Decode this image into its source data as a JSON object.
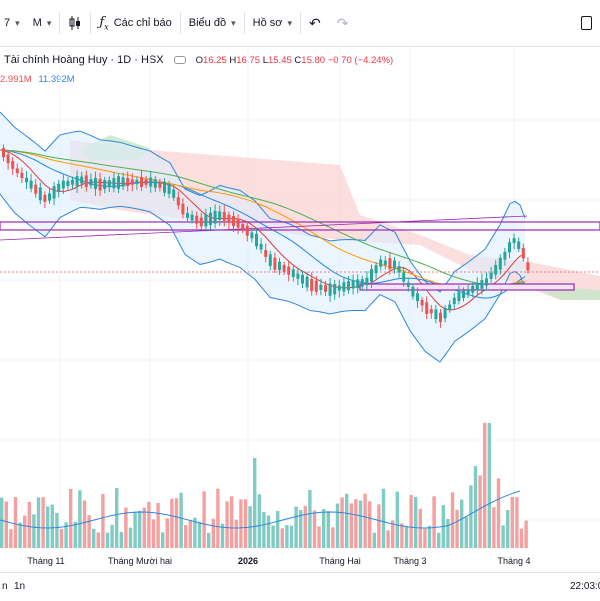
{
  "toolbar": {
    "left_glyph": "7",
    "interval": "M",
    "indicators_label": "Các chỉ báo",
    "chart_type_label": "Biểu đồ",
    "profile_label": "Hồ sơ"
  },
  "legend": {
    "symbol_title": "Tài chính Hoàng Huy · 1D · HSX",
    "open_label": "O",
    "open": "16.25",
    "high_label": "H",
    "high": "16.75",
    "low_label": "L",
    "low": "15.45",
    "close_label": "C",
    "close": "15.80",
    "change": "−0.70 (−4.24%)"
  },
  "indicator_values": {
    "value1": "2.991M",
    "value2": "11.392M"
  },
  "time_axis": [
    "Tháng 11",
    "Tháng Mười hai",
    "2026",
    "Tháng Hai",
    "Tháng 3",
    "Tháng 4"
  ],
  "bottom_bar": {
    "range_left": "n",
    "range_1n": "1n",
    "clock": "22:03:0"
  },
  "colors": {
    "up": "#26a69a",
    "down": "#ef5350",
    "cloud_red": "#f7c4c4",
    "cloud_green": "#c6e6c6",
    "bollinger": "#2e86de",
    "band_fill": "#ddeeff",
    "highlight_line": "#9c27b0"
  },
  "icons": [
    "chevron-down-icon",
    "fx-icon",
    "undo-icon",
    "candles-icon"
  ]
}
